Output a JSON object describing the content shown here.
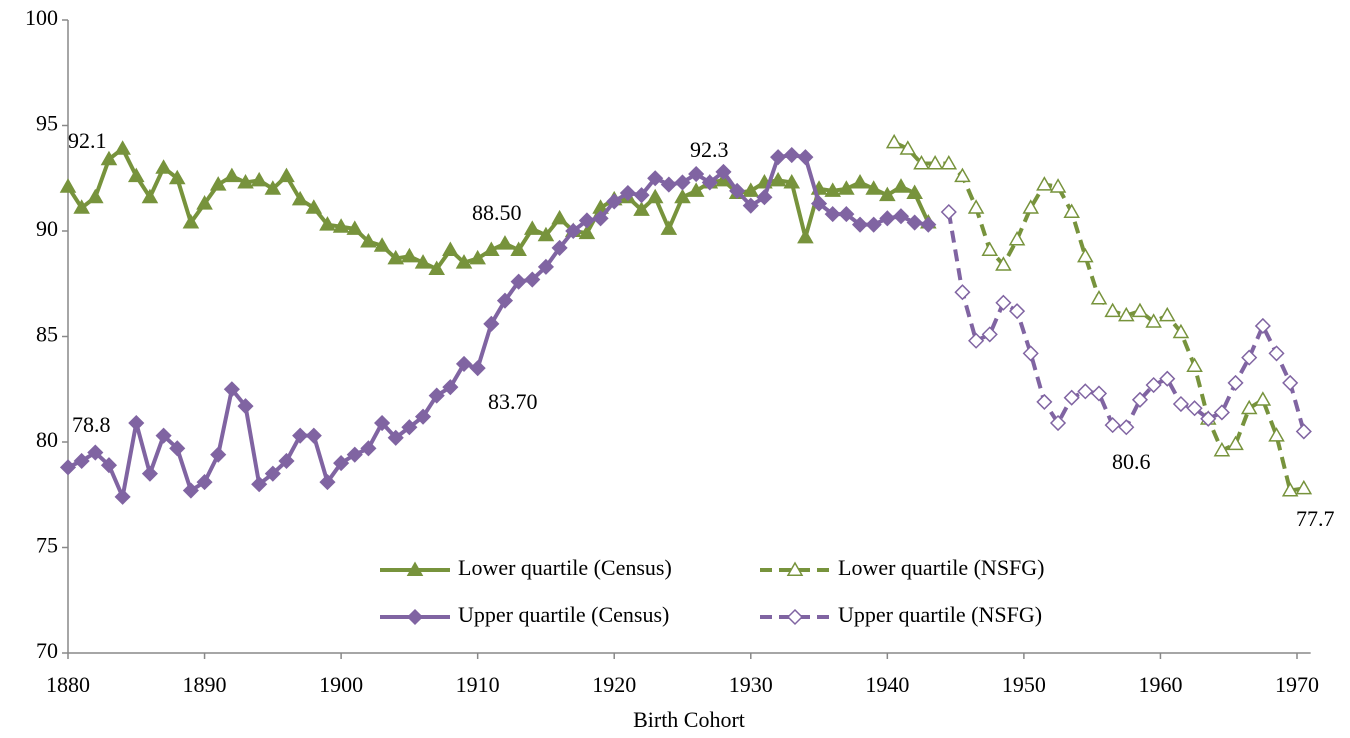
{
  "chart_data": {
    "type": "line",
    "x_label": "Birth Cohort",
    "xlim": [
      1880,
      1971
    ],
    "xticks": [
      1880,
      1890,
      1900,
      1910,
      1920,
      1930,
      1940,
      1950,
      1960,
      1970
    ],
    "ylim": [
      70,
      100
    ],
    "yticks": [
      70,
      75,
      80,
      85,
      90,
      95,
      100
    ],
    "grid": false,
    "legend": "bottom",
    "annotations": [
      "92.1",
      "78.8",
      "88.50",
      "83.70",
      "92.3",
      "80.6",
      "77.7"
    ],
    "series": [
      {
        "name": "Lower quartile (Census)",
        "color": "#77933c",
        "marker": "triangle",
        "filled": true,
        "dashed": false,
        "x": [
          1880,
          1881,
          1882,
          1883,
          1884,
          1885,
          1886,
          1887,
          1888,
          1889,
          1890,
          1891,
          1892,
          1893,
          1894,
          1895,
          1896,
          1897,
          1898,
          1899,
          1900,
          1901,
          1902,
          1903,
          1904,
          1905,
          1906,
          1907,
          1908,
          1909,
          1910,
          1911,
          1912,
          1913,
          1914,
          1915,
          1916,
          1917,
          1918,
          1919,
          1920,
          1921,
          1922,
          1923,
          1924,
          1925,
          1926,
          1927,
          1928,
          1929,
          1930,
          1931,
          1932,
          1933,
          1934,
          1935,
          1936,
          1937,
          1938,
          1939,
          1940,
          1941,
          1942,
          1943
        ],
        "values": [
          92.1,
          91.1,
          91.6,
          93.4,
          93.9,
          92.6,
          91.6,
          93.0,
          92.5,
          90.4,
          91.3,
          92.2,
          92.6,
          92.3,
          92.4,
          92.0,
          92.6,
          91.5,
          91.1,
          90.3,
          90.2,
          90.1,
          89.5,
          89.3,
          88.7,
          88.8,
          88.5,
          88.2,
          89.1,
          88.5,
          88.7,
          89.1,
          89.4,
          89.1,
          90.1,
          89.8,
          90.6,
          90.0,
          89.9,
          91.1,
          91.5,
          91.6,
          91.0,
          91.6,
          90.1,
          91.6,
          91.9,
          92.3,
          92.4,
          91.8,
          91.9,
          92.3,
          92.4,
          92.3,
          89.7,
          92.0,
          91.9,
          92.0,
          92.3,
          92.0,
          91.7,
          92.1,
          91.8,
          90.4
        ]
      },
      {
        "name": "Lower quartile (NSFG)",
        "color": "#77933c",
        "marker": "triangle",
        "filled": false,
        "dashed": true,
        "x": [
          1940.5,
          1941.5,
          1942.5,
          1943.5,
          1944.5,
          1945.5,
          1946.5,
          1947.5,
          1948.5,
          1949.5,
          1950.5,
          1951.5,
          1952.5,
          1953.5,
          1954.5,
          1955.5,
          1956.5,
          1957.5,
          1958.5,
          1959.5,
          1960.5,
          1961.5,
          1962.5,
          1963.5,
          1964.5,
          1965.5,
          1966.5,
          1967.5,
          1968.5,
          1969.5,
          1970.5
        ],
        "values": [
          94.2,
          93.9,
          93.2,
          93.2,
          93.2,
          92.6,
          91.1,
          89.1,
          88.4,
          89.6,
          91.1,
          92.2,
          92.1,
          90.9,
          88.8,
          86.8,
          86.2,
          86.0,
          86.2,
          85.7,
          86.0,
          85.2,
          83.6,
          81.1,
          79.6,
          79.9,
          81.6,
          82.0,
          80.3,
          77.7,
          77.8
        ]
      },
      {
        "name": "Upper quartile (Census)",
        "color": "#8064a2",
        "marker": "diamond",
        "filled": true,
        "dashed": false,
        "x": [
          1880,
          1881,
          1882,
          1883,
          1884,
          1885,
          1886,
          1887,
          1888,
          1889,
          1890,
          1891,
          1892,
          1893,
          1894,
          1895,
          1896,
          1897,
          1898,
          1899,
          1900,
          1901,
          1902,
          1903,
          1904,
          1905,
          1906,
          1907,
          1908,
          1909,
          1910,
          1911,
          1912,
          1913,
          1914,
          1915,
          1916,
          1917,
          1918,
          1919,
          1920,
          1921,
          1922,
          1923,
          1924,
          1925,
          1926,
          1927,
          1928,
          1929,
          1930,
          1931,
          1932,
          1933,
          1934,
          1935,
          1936,
          1937,
          1938,
          1939,
          1940,
          1941,
          1942,
          1943
        ],
        "values": [
          78.8,
          79.1,
          79.5,
          78.9,
          77.4,
          80.9,
          78.5,
          80.3,
          79.7,
          77.7,
          78.1,
          79.4,
          82.5,
          81.7,
          78.0,
          78.5,
          79.1,
          80.3,
          80.3,
          78.1,
          79.0,
          79.4,
          79.7,
          80.9,
          80.2,
          80.7,
          81.2,
          82.2,
          82.6,
          83.7,
          83.5,
          85.6,
          86.7,
          87.6,
          87.7,
          88.3,
          89.2,
          90.0,
          90.5,
          90.6,
          91.4,
          91.8,
          91.7,
          92.5,
          92.2,
          92.3,
          92.7,
          92.3,
          92.8,
          91.9,
          91.2,
          91.6,
          93.5,
          93.6,
          93.5,
          91.3,
          90.8,
          90.8,
          90.3,
          90.3,
          90.6,
          90.7,
          90.4,
          90.3
        ]
      },
      {
        "name": "Upper quartile (NSFG)",
        "color": "#8064a2",
        "marker": "diamond",
        "filled": false,
        "dashed": true,
        "x": [
          1944.5,
          1945.5,
          1946.5,
          1947.5,
          1948.5,
          1949.5,
          1950.5,
          1951.5,
          1952.5,
          1953.5,
          1954.5,
          1955.5,
          1956.5,
          1957.5,
          1958.5,
          1959.5,
          1960.5,
          1961.5,
          1962.5,
          1963.5,
          1964.5,
          1965.5,
          1966.5,
          1967.5,
          1968.5,
          1969.5,
          1970.5
        ],
        "values": [
          90.9,
          87.1,
          84.8,
          85.1,
          86.6,
          86.2,
          84.2,
          81.9,
          80.9,
          82.1,
          82.4,
          82.3,
          80.8,
          80.7,
          82.0,
          82.7,
          83.0,
          81.8,
          81.6,
          81.1,
          81.4,
          82.8,
          84.0,
          85.5,
          84.2,
          82.8,
          80.5
        ]
      }
    ]
  }
}
